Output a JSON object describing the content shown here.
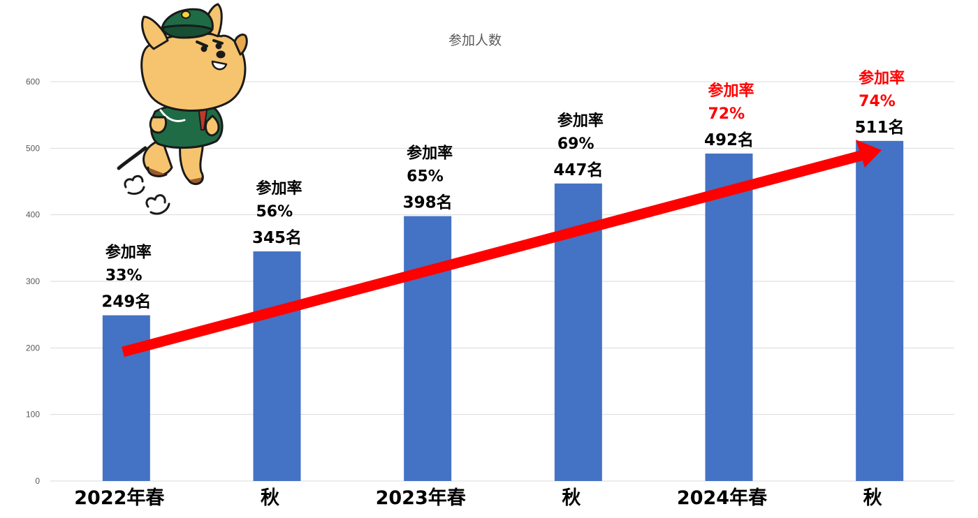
{
  "chart_data": {
    "type": "bar",
    "title": "参加人数",
    "categories": [
      "2022年春",
      "秋",
      "2023年春",
      "秋",
      "2024年春",
      "秋"
    ],
    "values": [
      249,
      345,
      398,
      447,
      492,
      511
    ],
    "value_labels": [
      "249名",
      "345名",
      "398名",
      "447名",
      "492名",
      "511名"
    ],
    "rate_caption": "参加率",
    "rates": [
      "33%",
      "56%",
      "65%",
      "69%",
      "72%",
      "74%"
    ],
    "rate_highlight": [
      false,
      false,
      false,
      false,
      true,
      true
    ],
    "ylim": [
      0,
      600
    ],
    "yticks": [
      0,
      100,
      200,
      300,
      400,
      500,
      600
    ],
    "grid": true,
    "colors": {
      "bar": "#4472C4",
      "highlight": "#FF0000",
      "text": "#000000",
      "grid": "#D9D9D9",
      "arrow": "#FF0000"
    },
    "annotation": "trend-arrow",
    "mascot": "dog-mascot-in-green-cap-and-jacket"
  }
}
